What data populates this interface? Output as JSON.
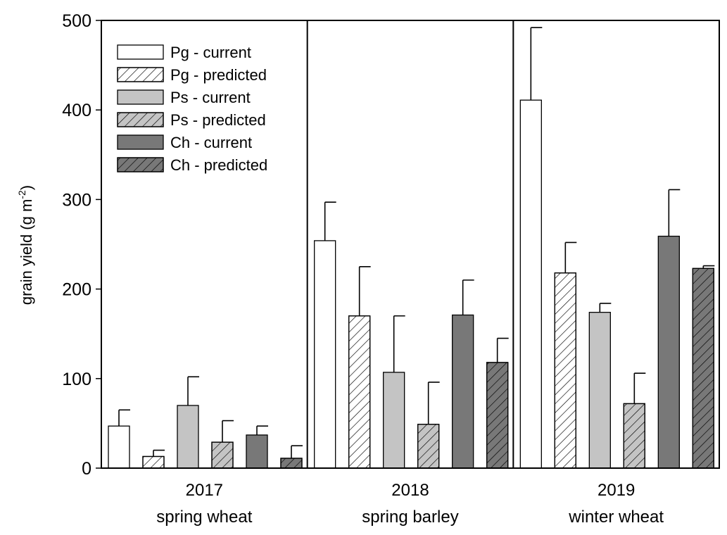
{
  "chart_data": {
    "type": "bar",
    "ylabel_main": "grain yield (g m",
    "ylabel_sup": "-2",
    "ylabel_close": ")",
    "ylim": [
      0,
      500
    ],
    "yticks": [
      "0",
      "100",
      "200",
      "300",
      "400",
      "500"
    ],
    "ytick_values": [
      0,
      100,
      200,
      300,
      400,
      500
    ],
    "legend_position": "top-left",
    "groups": [
      {
        "year": "2017",
        "crop": "spring wheat"
      },
      {
        "year": "2018",
        "crop": "spring barley"
      },
      {
        "year": "2019",
        "crop": "winter wheat"
      }
    ],
    "series": [
      {
        "name": "Pg - current",
        "fill": "#ffffff",
        "hatch": false,
        "values": [
          47,
          254,
          411
        ],
        "errors": [
          18,
          43,
          81
        ]
      },
      {
        "name": "Pg - predicted",
        "fill": "#ffffff",
        "hatch": true,
        "values": [
          13,
          170,
          218
        ],
        "errors": [
          7,
          55,
          34
        ]
      },
      {
        "name": "Ps - current",
        "fill": "#c4c4c4",
        "hatch": false,
        "values": [
          70,
          107,
          174
        ],
        "errors": [
          32,
          63,
          10
        ]
      },
      {
        "name": "Ps - predicted",
        "fill": "#c4c4c4",
        "hatch": true,
        "values": [
          29,
          49,
          72
        ],
        "errors": [
          24,
          47,
          34
        ]
      },
      {
        "name": "Ch - current",
        "fill": "#787878",
        "hatch": false,
        "values": [
          37,
          171,
          259
        ],
        "errors": [
          10,
          39,
          52
        ]
      },
      {
        "name": "Ch - predicted",
        "fill": "#787878",
        "hatch": true,
        "values": [
          11,
          118,
          223
        ],
        "errors": [
          14,
          27,
          3
        ]
      }
    ]
  }
}
